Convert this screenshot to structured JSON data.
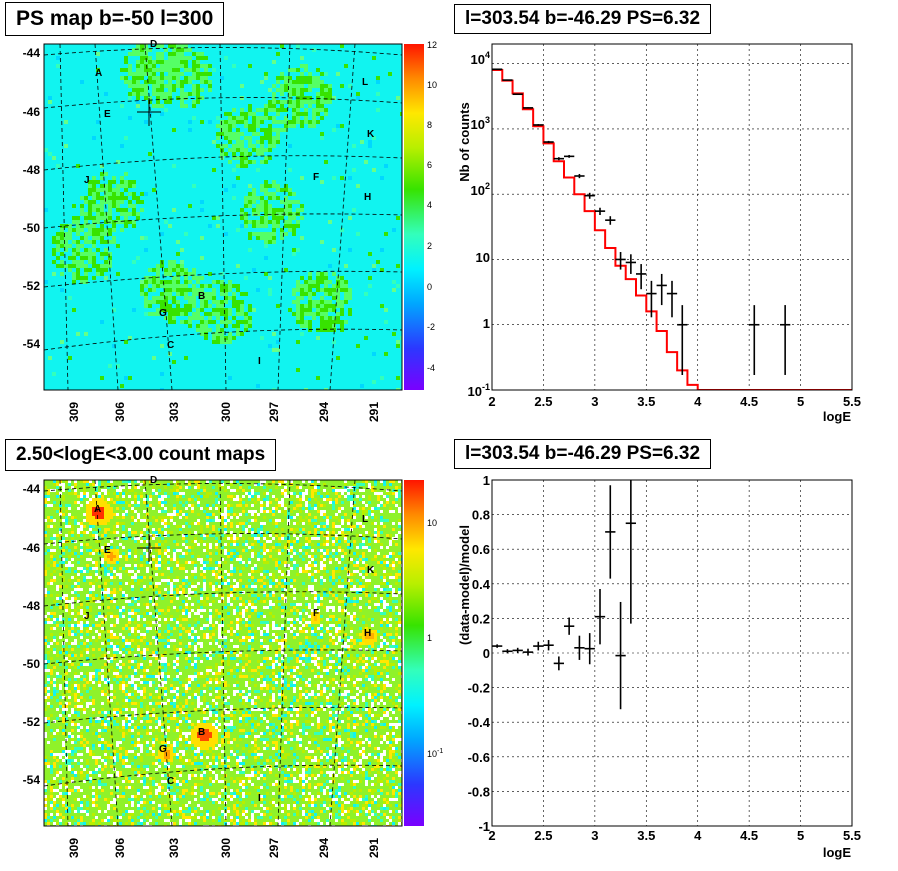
{
  "panels": {
    "ps_map": {
      "title": "PS map b=-50 l=300"
    },
    "spectrum": {
      "title": "l=303.54 b=-46.29 PS=6.32"
    },
    "count_map": {
      "title": "2.50<logE<3.00 count maps"
    },
    "residual": {
      "title": "l=303.54 b=-46.29 PS=6.32"
    }
  },
  "chart_data": [
    {
      "id": "ps_map",
      "type": "heatmap",
      "title": "PS map b=-50 l=300",
      "xlabel": "",
      "ylabel": "",
      "x_tick_labels": [
        "309",
        "306",
        "303",
        "300",
        "297",
        "294",
        "291"
      ],
      "y_tick_labels": [
        "-44",
        "-46",
        "-48",
        "-50",
        "-52",
        "-54"
      ],
      "color_scale": {
        "min": -5,
        "max": 12,
        "tick_labels": [
          "12",
          "10",
          "8",
          "6",
          "4",
          "2",
          "0",
          "-2",
          "-4"
        ]
      },
      "grid": true,
      "source_labels": [
        "A",
        "B",
        "C",
        "D",
        "E",
        "F",
        "G",
        "H",
        "I",
        "J",
        "K",
        "L"
      ],
      "marker": {
        "label": "l=303.54 b=-46.29",
        "shape": "cross"
      }
    },
    {
      "id": "spectrum",
      "type": "line",
      "title": "l=303.54 b=-46.29 PS=6.32",
      "xlabel": "logE",
      "ylabel": "Nb of counts",
      "xlim": [
        2,
        5.5
      ],
      "ylim": [
        0.1,
        20000
      ],
      "yscale": "log",
      "x_tick_labels": [
        "2",
        "2.5",
        "3",
        "3.5",
        "4",
        "4.5",
        "5",
        "5.5"
      ],
      "y_tick_labels": [
        "10^4",
        "10^3",
        "10^2",
        "10",
        "1",
        "10^-1"
      ],
      "grid": true,
      "series": [
        {
          "kind": "model_step",
          "color": "#ff0000",
          "edges": [
            2.0,
            2.1,
            2.2,
            2.3,
            2.4,
            2.5,
            2.6,
            2.7,
            2.8,
            2.9,
            3.0,
            3.1,
            3.2,
            3.3,
            3.4,
            3.5,
            3.6,
            3.7,
            3.8,
            3.9,
            4.0,
            5.5
          ],
          "values": [
            8000,
            5500,
            3500,
            2000,
            1100,
            600,
            320,
            180,
            100,
            55,
            28,
            15,
            8,
            5,
            2.8,
            1.6,
            0.8,
            0.38,
            0.2,
            0.12,
            0.1
          ]
        },
        {
          "kind": "data_points",
          "color": "#000000",
          "x": [
            2.05,
            2.15,
            2.25,
            2.35,
            2.45,
            2.55,
            2.65,
            2.75,
            2.85,
            2.95,
            3.05,
            3.15,
            3.25,
            3.35,
            3.45,
            3.55,
            3.65,
            3.75,
            3.85,
            4.55,
            4.85
          ],
          "y": [
            8200,
            5600,
            3400,
            2100,
            1150,
            630,
            350,
            380,
            190,
            95,
            55,
            40,
            10,
            9,
            6,
            3,
            4,
            3,
            1,
            1,
            1
          ],
          "err_lo": [
            90,
            75,
            58,
            45,
            34,
            25,
            19,
            19,
            14,
            10,
            7,
            6,
            3,
            3,
            2.5,
            1.7,
            2,
            1.7,
            0.83,
            0.83,
            0.83
          ],
          "err_hi": [
            90,
            75,
            58,
            45,
            34,
            25,
            19,
            19,
            14,
            10,
            7,
            6,
            3,
            3,
            2.5,
            1.7,
            2,
            1.7,
            1.0,
            1.0,
            1.0
          ]
        }
      ]
    },
    {
      "id": "count_map",
      "type": "heatmap",
      "title": "2.50<logE<3.00 count maps",
      "xlabel": "",
      "ylabel": "",
      "x_tick_labels": [
        "309",
        "306",
        "303",
        "300",
        "297",
        "294",
        "291"
      ],
      "y_tick_labels": [
        "-44",
        "-46",
        "-48",
        "-50",
        "-52",
        "-54"
      ],
      "color_scale": {
        "scale": "log",
        "tick_labels": [
          "10",
          "1",
          "10^-1"
        ]
      },
      "grid": true,
      "source_labels": [
        "A",
        "B",
        "C",
        "D",
        "E",
        "F",
        "G",
        "H",
        "I",
        "J",
        "K",
        "L"
      ],
      "marker": {
        "label": "l=303.54 b=-46.29",
        "shape": "cross"
      }
    },
    {
      "id": "residual",
      "type": "scatter",
      "title": "l=303.54 b=-46.29 PS=6.32",
      "xlabel": "logE",
      "ylabel": "(data-model)/model",
      "xlim": [
        2,
        5.5
      ],
      "ylim": [
        -1,
        1
      ],
      "x_tick_labels": [
        "2",
        "2.5",
        "3",
        "3.5",
        "4",
        "4.5",
        "5",
        "5.5"
      ],
      "y_tick_labels": [
        "1",
        "0.8",
        "0.6",
        "0.4",
        "0.2",
        "0",
        "-0.2",
        "-0.4",
        "-0.6",
        "-0.8",
        "-1"
      ],
      "grid": true,
      "series": [
        {
          "kind": "data_points",
          "color": "#000000",
          "x": [
            2.05,
            2.15,
            2.25,
            2.35,
            2.45,
            2.55,
            2.65,
            2.75,
            2.85,
            2.95,
            3.05,
            3.15,
            3.25,
            3.35
          ],
          "y": [
            0.04,
            0.01,
            0.015,
            0.005,
            0.04,
            0.045,
            -0.06,
            0.155,
            0.03,
            0.025,
            0.21,
            0.7,
            -0.015,
            0.75
          ],
          "err": [
            0.01,
            0.012,
            0.015,
            0.02,
            0.025,
            0.03,
            0.04,
            0.05,
            0.07,
            0.09,
            0.16,
            0.27,
            0.31,
            0.58
          ]
        }
      ]
    }
  ]
}
